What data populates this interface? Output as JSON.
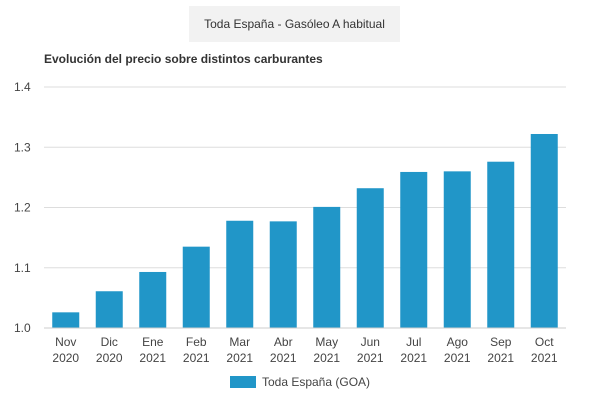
{
  "tab": {
    "label": "Toda España - Gasóleo A habitual"
  },
  "chart_data": {
    "type": "bar",
    "title": "Evolución del precio sobre distintos carburantes",
    "categories": [
      [
        "Nov",
        "2020"
      ],
      [
        "Dic",
        "2020"
      ],
      [
        "Ene",
        "2021"
      ],
      [
        "Feb",
        "2021"
      ],
      [
        "Mar",
        "2021"
      ],
      [
        "Abr",
        "2021"
      ],
      [
        "May",
        "2021"
      ],
      [
        "Jun",
        "2021"
      ],
      [
        "Jul",
        "2021"
      ],
      [
        "Ago",
        "2021"
      ],
      [
        "Sep",
        "2021"
      ],
      [
        "Oct",
        "2021"
      ]
    ],
    "series": [
      {
        "name": "Toda España (GOA)",
        "color": "#2196c8",
        "values": [
          1.026,
          1.061,
          1.093,
          1.135,
          1.178,
          1.177,
          1.201,
          1.232,
          1.259,
          1.26,
          1.276,
          1.322
        ]
      }
    ],
    "ylim": [
      1.0,
      1.4
    ],
    "yticks": [
      "1.0",
      "1.1",
      "1.2",
      "1.3",
      "1.4"
    ],
    "grid": true,
    "legend": "bottom-center"
  }
}
